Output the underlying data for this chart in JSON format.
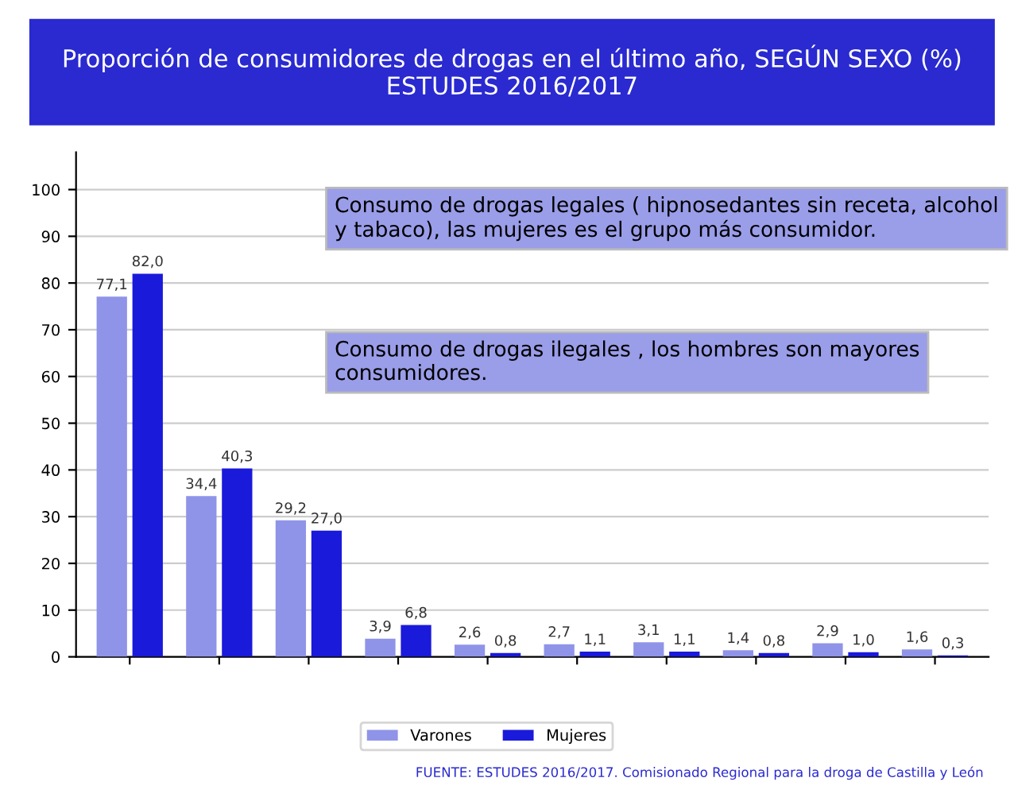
{
  "chart_data": {
    "type": "bar",
    "title": "Proporción de consumidores de drogas en el último año, SEGÚN SEXO (%)\nESTUDES 2016/2017",
    "categories": [
      null,
      null,
      null,
      null,
      null,
      null,
      null,
      null,
      null,
      null
    ],
    "series": [
      {
        "name": "Varones",
        "color": "#8f94e8",
        "values": [
          77.1,
          34.4,
          29.2,
          3.9,
          2.6,
          2.7,
          3.1,
          1.4,
          2.9,
          1.6
        ],
        "value_labels": [
          "77,1",
          "34,4",
          "29,2",
          "3,9",
          "2,6",
          "2,7",
          "3,1",
          "1,4",
          "2,9",
          "1,6"
        ]
      },
      {
        "name": "Mujeres",
        "color": "#1a1adb",
        "values": [
          82.0,
          40.3,
          27.0,
          6.8,
          0.8,
          1.1,
          1.1,
          0.8,
          1.0,
          0.3
        ],
        "value_labels": [
          "82,0",
          "40,3",
          "27,0",
          "6,8",
          "0,8",
          "1,1",
          "1,1",
          "0,8",
          "1,0",
          "0,3"
        ]
      }
    ],
    "ylim": [
      0,
      108
    ],
    "yticks": [
      0,
      10,
      20,
      30,
      40,
      50,
      60,
      70,
      80,
      90,
      100
    ],
    "grid": "y",
    "legend": "bottom",
    "annotations": [
      "Consumo de drogas legales ( hipnosedantes sin receta, alcohol y tabaco), las mujeres es el grupo más consumidor.",
      "Consumo de drogas ilegales , los hombres son mayores consumidores.",
      "FUENTE: ESTUDES 2016/2017. Comisionado Regional para la droga de Castilla y León"
    ]
  }
}
